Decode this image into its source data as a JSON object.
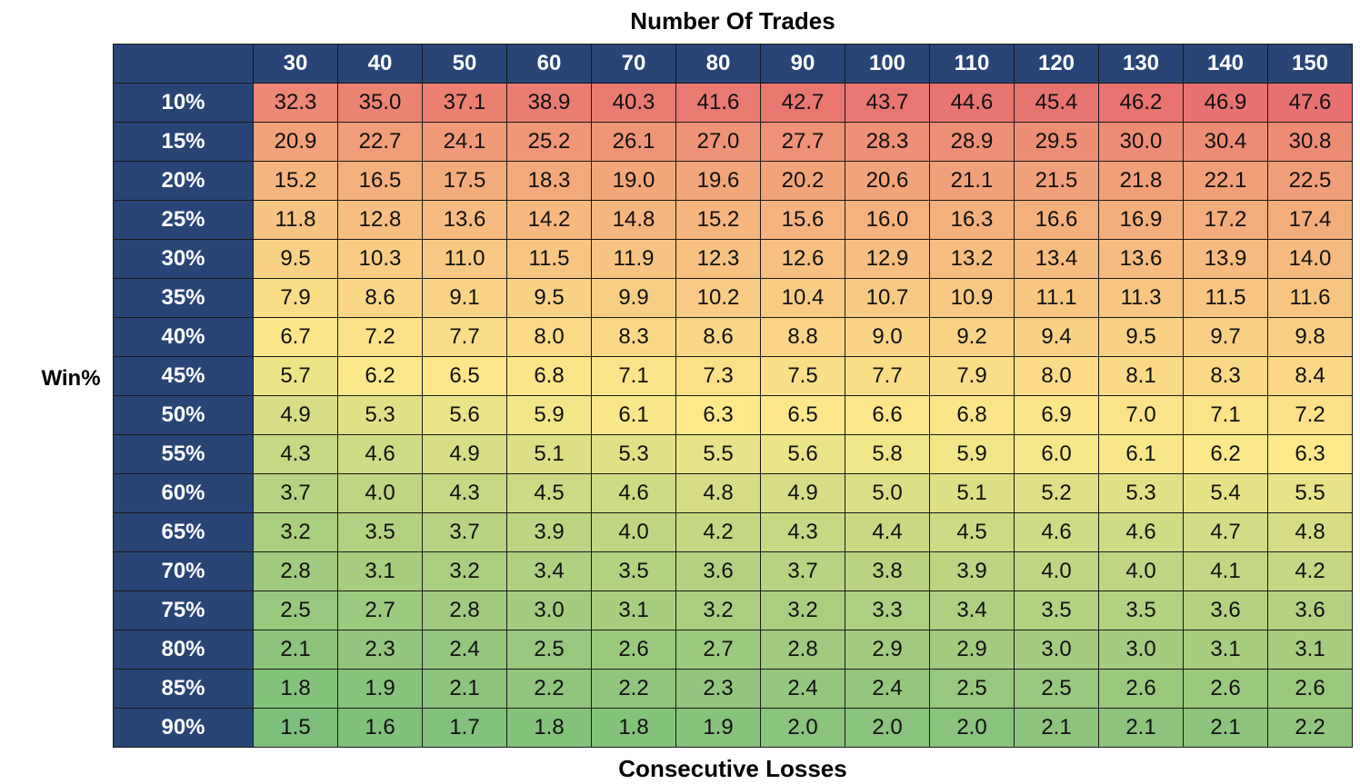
{
  "chart_data": {
    "type": "heatmap",
    "title": "Number Of Trades",
    "xlabel": "Consecutive Losses",
    "ylabel": "Win%",
    "x": [
      "30",
      "40",
      "50",
      "60",
      "70",
      "80",
      "90",
      "100",
      "110",
      "120",
      "130",
      "140",
      "150"
    ],
    "y": [
      "10%",
      "15%",
      "20%",
      "25%",
      "30%",
      "35%",
      "40%",
      "45%",
      "50%",
      "55%",
      "60%",
      "65%",
      "70%",
      "75%",
      "80%",
      "85%",
      "90%"
    ],
    "values": [
      [
        "32.3",
        "35.0",
        "37.1",
        "38.9",
        "40.3",
        "41.6",
        "42.7",
        "43.7",
        "44.6",
        "45.4",
        "46.2",
        "46.9",
        "47.6"
      ],
      [
        "20.9",
        "22.7",
        "24.1",
        "25.2",
        "26.1",
        "27.0",
        "27.7",
        "28.3",
        "28.9",
        "29.5",
        "30.0",
        "30.4",
        "30.8"
      ],
      [
        "15.2",
        "16.5",
        "17.5",
        "18.3",
        "19.0",
        "19.6",
        "20.2",
        "20.6",
        "21.1",
        "21.5",
        "21.8",
        "22.1",
        "22.5"
      ],
      [
        "11.8",
        "12.8",
        "13.6",
        "14.2",
        "14.8",
        "15.2",
        "15.6",
        "16.0",
        "16.3",
        "16.6",
        "16.9",
        "17.2",
        "17.4"
      ],
      [
        "9.5",
        "10.3",
        "11.0",
        "11.5",
        "11.9",
        "12.3",
        "12.6",
        "12.9",
        "13.2",
        "13.4",
        "13.6",
        "13.9",
        "14.0"
      ],
      [
        "7.9",
        "8.6",
        "9.1",
        "9.5",
        "9.9",
        "10.2",
        "10.4",
        "10.7",
        "10.9",
        "11.1",
        "11.3",
        "11.5",
        "11.6"
      ],
      [
        "6.7",
        "7.2",
        "7.7",
        "8.0",
        "8.3",
        "8.6",
        "8.8",
        "9.0",
        "9.2",
        "9.4",
        "9.5",
        "9.7",
        "9.8"
      ],
      [
        "5.7",
        "6.2",
        "6.5",
        "6.8",
        "7.1",
        "7.3",
        "7.5",
        "7.7",
        "7.9",
        "8.0",
        "8.1",
        "8.3",
        "8.4"
      ],
      [
        "4.9",
        "5.3",
        "5.6",
        "5.9",
        "6.1",
        "6.3",
        "6.5",
        "6.6",
        "6.8",
        "6.9",
        "7.0",
        "7.1",
        "7.2"
      ],
      [
        "4.3",
        "4.6",
        "4.9",
        "5.1",
        "5.3",
        "5.5",
        "5.6",
        "5.8",
        "5.9",
        "6.0",
        "6.1",
        "6.2",
        "6.3"
      ],
      [
        "3.7",
        "4.0",
        "4.3",
        "4.5",
        "4.6",
        "4.8",
        "4.9",
        "5.0",
        "5.1",
        "5.2",
        "5.3",
        "5.4",
        "5.5"
      ],
      [
        "3.2",
        "3.5",
        "3.7",
        "3.9",
        "4.0",
        "4.2",
        "4.3",
        "4.4",
        "4.5",
        "4.6",
        "4.6",
        "4.7",
        "4.8"
      ],
      [
        "2.8",
        "3.1",
        "3.2",
        "3.4",
        "3.5",
        "3.6",
        "3.7",
        "3.8",
        "3.9",
        "4.0",
        "4.0",
        "4.1",
        "4.2"
      ],
      [
        "2.5",
        "2.7",
        "2.8",
        "3.0",
        "3.1",
        "3.2",
        "3.2",
        "3.3",
        "3.4",
        "3.5",
        "3.5",
        "3.6",
        "3.6"
      ],
      [
        "2.1",
        "2.3",
        "2.4",
        "2.5",
        "2.6",
        "2.7",
        "2.8",
        "2.9",
        "2.9",
        "3.0",
        "3.0",
        "3.1",
        "3.1"
      ],
      [
        "1.8",
        "1.9",
        "2.1",
        "2.2",
        "2.2",
        "2.3",
        "2.4",
        "2.4",
        "2.5",
        "2.5",
        "2.6",
        "2.6",
        "2.6"
      ],
      [
        "1.5",
        "1.6",
        "1.7",
        "1.8",
        "1.8",
        "1.9",
        "2.0",
        "2.0",
        "2.0",
        "2.1",
        "2.1",
        "2.1",
        "2.2"
      ]
    ],
    "colors": {
      "header_bg": "#284576",
      "header_text": "#ffffff",
      "scale_low": "#7cbf7b",
      "scale_mid": "#fde98a",
      "scale_high": "#e8716f"
    }
  }
}
